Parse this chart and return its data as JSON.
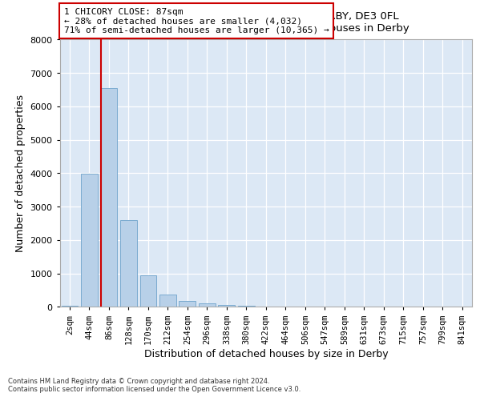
{
  "title1": "1, CHICORY CLOSE, MICKLEOVER, DERBY, DE3 0FL",
  "title2": "Size of property relative to detached houses in Derby",
  "xlabel": "Distribution of detached houses by size in Derby",
  "ylabel": "Number of detached properties",
  "categories": [
    "2sqm",
    "44sqm",
    "86sqm",
    "128sqm",
    "170sqm",
    "212sqm",
    "254sqm",
    "296sqm",
    "338sqm",
    "380sqm",
    "422sqm",
    "464sqm",
    "506sqm",
    "547sqm",
    "589sqm",
    "631sqm",
    "673sqm",
    "715sqm",
    "757sqm",
    "799sqm",
    "841sqm"
  ],
  "values": [
    30,
    3980,
    6550,
    2600,
    950,
    380,
    170,
    100,
    50,
    30,
    10,
    5,
    0,
    0,
    0,
    0,
    0,
    0,
    0,
    0,
    0
  ],
  "bar_color": "#b8d0e8",
  "bar_edge_color": "#7aaad0",
  "vline_color": "#cc0000",
  "annotation_text": "1 CHICORY CLOSE: 87sqm\n← 28% of detached houses are smaller (4,032)\n71% of semi-detached houses are larger (10,365) →",
  "ylim": [
    0,
    8000
  ],
  "yticks": [
    0,
    1000,
    2000,
    3000,
    4000,
    5000,
    6000,
    7000,
    8000
  ],
  "footer1": "Contains HM Land Registry data © Crown copyright and database right 2024.",
  "footer2": "Contains public sector information licensed under the Open Government Licence v3.0.",
  "bg_color": "#dce8f5"
}
